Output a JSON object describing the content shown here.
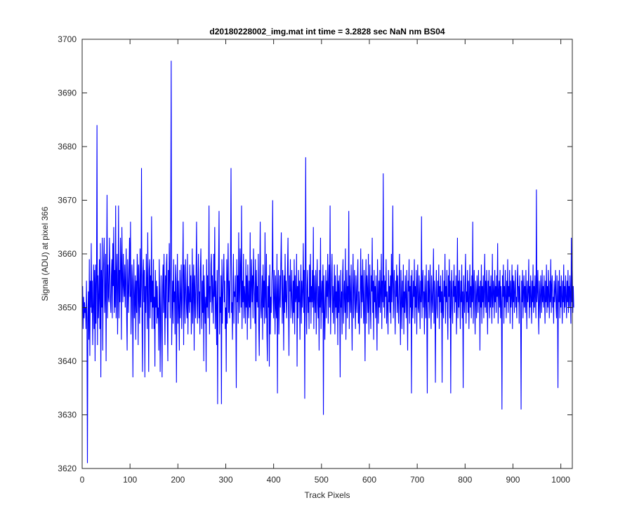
{
  "chart_data": {
    "type": "line",
    "title": "d20180228002_img.mat int time = 3.2828 sec  NaN nm BS04",
    "xlabel": "Track Pixels",
    "ylabel": "Signal (ADU) at pixel 366",
    "xlim": [
      0,
      1024
    ],
    "ylim": [
      3620,
      3700
    ],
    "xticks": [
      0,
      100,
      200,
      300,
      400,
      500,
      600,
      700,
      800,
      900,
      1000
    ],
    "yticks": [
      3620,
      3630,
      3640,
      3650,
      3660,
      3670,
      3680,
      3690,
      3700
    ],
    "grid": false,
    "legend": "none",
    "series": [
      {
        "color": "#0000ff",
        "x_start": 1,
        "x_step": 1,
        "values": [
          3654,
          3646,
          3652,
          3648,
          3651,
          3649,
          3650,
          3646,
          3655,
          3647,
          3621,
          3648,
          3653,
          3644,
          3659,
          3641,
          3655,
          3650,
          3662,
          3649,
          3655,
          3643,
          3650,
          3658,
          3646,
          3657,
          3640,
          3658,
          3647,
          3655,
          3684,
          3643,
          3656,
          3648,
          3652,
          3659,
          3646,
          3662,
          3637,
          3657,
          3650,
          3663,
          3642,
          3655,
          3659,
          3663,
          3649,
          3652,
          3660,
          3640,
          3656,
          3671,
          3648,
          3658,
          3652,
          3651,
          3663,
          3657,
          3651,
          3649,
          3656,
          3659,
          3648,
          3662,
          3654,
          3665,
          3649,
          3657,
          3650,
          3669,
          3648,
          3656,
          3660,
          3645,
          3653,
          3669,
          3648,
          3657,
          3651,
          3663,
          3659,
          3644,
          3665,
          3656,
          3651,
          3660,
          3654,
          3652,
          3658,
          3650,
          3655,
          3661,
          3648,
          3642,
          3659,
          3654,
          3649,
          3657,
          3663,
          3652,
          3666,
          3645,
          3650,
          3658,
          3655,
          3637,
          3653,
          3659,
          3648,
          3651,
          3656,
          3644,
          3655,
          3649,
          3660,
          3657,
          3643,
          3658,
          3652,
          3647,
          3661,
          3650,
          3654,
          3676,
          3648,
          3638,
          3656,
          3659,
          3651,
          3657,
          3637,
          3654,
          3649,
          3660,
          3655,
          3646,
          3664,
          3652,
          3638,
          3657,
          3659,
          3648,
          3656,
          3651,
          3667,
          3646,
          3655,
          3650,
          3659,
          3646,
          3652,
          3639,
          3657,
          3650,
          3655,
          3647,
          3654,
          3648,
          3650,
          3642,
          3659,
          3652,
          3638,
          3650,
          3656,
          3645,
          3637,
          3654,
          3658,
          3649,
          3660,
          3651,
          3643,
          3656,
          3648,
          3658,
          3660,
          3647,
          3640,
          3657,
          3651,
          3662,
          3655,
          3648,
          3667,
          3696,
          3643,
          3650,
          3655,
          3647,
          3659,
          3651,
          3653,
          3645,
          3658,
          3655,
          3636,
          3652,
          3660,
          3647,
          3655,
          3650,
          3642,
          3657,
          3648,
          3652,
          3658,
          3646,
          3651,
          3657,
          3666,
          3643,
          3658,
          3652,
          3647,
          3659,
          3654,
          3650,
          3648,
          3660,
          3645,
          3654,
          3652,
          3649,
          3658,
          3651,
          3656,
          3645,
          3650,
          3661,
          3647,
          3654,
          3658,
          3642,
          3656,
          3652,
          3648,
          3657,
          3666,
          3651,
          3647,
          3655,
          3660,
          3648,
          3653,
          3645,
          3657,
          3661,
          3652,
          3646,
          3655,
          3649,
          3658,
          3640,
          3656,
          3651,
          3647,
          3652,
          3638,
          3659,
          3650,
          3656,
          3648,
          3653,
          3669,
          3645,
          3654,
          3651,
          3658,
          3660,
          3649,
          3656,
          3652,
          3647,
          3660,
          3652,
          3665,
          3646,
          3655,
          3650,
          3643,
          3657,
          3632,
          3654,
          3658,
          3668,
          3645,
          3652,
          3649,
          3656,
          3632,
          3659,
          3647,
          3652,
          3656,
          3660,
          3651,
          3655,
          3646,
          3650,
          3638,
          3659,
          3647,
          3656,
          3662,
          3649,
          3655,
          3648,
          3654,
          3660,
          3676,
          3649,
          3651,
          3644,
          3655,
          3660,
          3647,
          3653,
          3652,
          3656,
          3649,
          3635,
          3659,
          3651,
          3656,
          3647,
          3664,
          3653,
          3649,
          3661,
          3657,
          3650,
          3669,
          3646,
          3655,
          3651,
          3660,
          3648,
          3654,
          3652,
          3647,
          3659,
          3650,
          3656,
          3644,
          3658,
          3652,
          3648,
          3655,
          3650,
          3664,
          3646,
          3654,
          3659,
          3651,
          3656,
          3648,
          3661,
          3655,
          3652,
          3647,
          3659,
          3640,
          3657,
          3651,
          3654,
          3650,
          3660,
          3646,
          3641,
          3655,
          3666,
          3650,
          3648,
          3652,
          3656,
          3644,
          3658,
          3650,
          3655,
          3647,
          3664,
          3652,
          3648,
          3660,
          3645,
          3640,
          3654,
          3650,
          3656,
          3639,
          3658,
          3645,
          3652,
          3649,
          3655,
          3657,
          3670,
          3651,
          3648,
          3657,
          3652,
          3645,
          3656,
          3650,
          3648,
          3660,
          3634,
          3653,
          3657,
          3645,
          3651,
          3656,
          3650,
          3658,
          3664,
          3654,
          3647,
          3657,
          3652,
          3642,
          3656,
          3649,
          3660,
          3651,
          3655,
          3648,
          3652,
          3657,
          3663,
          3650,
          3641,
          3656,
          3653,
          3659,
          3648,
          3652,
          3657,
          3650,
          3647,
          3655,
          3649,
          3659,
          3645,
          3656,
          3651,
          3652,
          3660,
          3639,
          3654,
          3648,
          3657,
          3651,
          3655,
          3644,
          3652,
          3658,
          3647,
          3655,
          3650,
          3653,
          3662,
          3649,
          3657,
          3633,
          3655,
          3678,
          3650,
          3645,
          3654,
          3657,
          3649,
          3652,
          3646,
          3658,
          3651,
          3660,
          3647,
          3654,
          3651,
          3657,
          3650,
          3665,
          3646,
          3656,
          3652,
          3649,
          3657,
          3645,
          3653,
          3659,
          3651,
          3648,
          3654,
          3642,
          3657,
          3650,
          3663,
          3646,
          3652,
          3655,
          3649,
          3658,
          3630,
          3656,
          3650,
          3644,
          3651,
          3657,
          3648,
          3655,
          3652,
          3660,
          3647,
          3654,
          3658,
          3650,
          3669,
          3645,
          3651,
          3656,
          3660,
          3649,
          3654,
          3647,
          3652,
          3658,
          3645,
          3656,
          3650,
          3653,
          3648,
          3658,
          3643,
          3655,
          3649,
          3656,
          3651,
          3637,
          3657,
          3650,
          3653,
          3645,
          3656,
          3659,
          3647,
          3652,
          3655,
          3649,
          3661,
          3644,
          3652,
          3657,
          3648,
          3654,
          3651,
          3668,
          3646,
          3656,
          3652,
          3649,
          3658,
          3650,
          3642,
          3655,
          3660,
          3648,
          3653,
          3657,
          3650,
          3646,
          3656,
          3652,
          3649,
          3655,
          3659,
          3647,
          3653,
          3645,
          3650,
          3654,
          3661,
          3648,
          3656,
          3651,
          3659,
          3652,
          3647,
          3657,
          3650,
          3640,
          3654,
          3659,
          3647,
          3656,
          3653,
          3649,
          3660,
          3645,
          3652,
          3658,
          3650,
          3646,
          3656,
          3653,
          3663,
          3649,
          3655,
          3644,
          3657,
          3651,
          3654,
          3648,
          3656,
          3650,
          3642,
          3659,
          3653,
          3647,
          3655,
          3650,
          3657,
          3649,
          3653,
          3660,
          3646,
          3655,
          3651,
          3675,
          3650,
          3656,
          3648,
          3655,
          3652,
          3659,
          3647,
          3653,
          3650,
          3645,
          3657,
          3651,
          3654,
          3649,
          3656,
          3647,
          3660,
          3651,
          3655,
          3669,
          3648,
          3653,
          3657,
          3650,
          3645,
          3655,
          3652,
          3658,
          3649,
          3656,
          3651,
          3647,
          3654,
          3660,
          3650,
          3643,
          3657,
          3652,
          3646,
          3655,
          3650,
          3658,
          3645,
          3653,
          3649,
          3656,
          3652,
          3648,
          3657,
          3651,
          3642,
          3655,
          3653,
          3659,
          3647,
          3654,
          3650,
          3656,
          3634,
          3657,
          3651,
          3648,
          3655,
          3652,
          3659,
          3647,
          3654,
          3650,
          3657,
          3645,
          3653,
          3658,
          3650,
          3649,
          3656,
          3652,
          3646,
          3655,
          3651,
          3667,
          3648,
          3654,
          3657,
          3650,
          3653,
          3645,
          3656,
          3652,
          3648,
          3658,
          3649,
          3634,
          3655,
          3651,
          3657,
          3648,
          3653,
          3658,
          3650,
          3646,
          3656,
          3652,
          3649,
          3654,
          3661,
          3647,
          3655,
          3651,
          3636,
          3653,
          3657,
          3650,
          3648,
          3655,
          3652,
          3658,
          3646,
          3654,
          3651,
          3656,
          3649,
          3653,
          3636,
          3657,
          3650,
          3648,
          3655,
          3652,
          3660,
          3647,
          3654,
          3651,
          3657,
          3649,
          3644,
          3656,
          3652,
          3659,
          3648,
          3655,
          3634,
          3653,
          3657,
          3650,
          3647,
          3655,
          3652,
          3658,
          3649,
          3654,
          3651,
          3656,
          3645,
          3652,
          3663,
          3648,
          3655,
          3650,
          3657,
          3652,
          3646,
          3655,
          3651,
          3658,
          3648,
          3653,
          3635,
          3656,
          3652,
          3649,
          3655,
          3660,
          3647,
          3653,
          3651,
          3657,
          3649,
          3655,
          3646,
          3652,
          3658,
          3650,
          3654,
          3648,
          3656,
          3651,
          3666,
          3647,
          3653,
          3657,
          3650,
          3645,
          3655,
          3652,
          3648,
          3656,
          3653,
          3649,
          3657,
          3651,
          3654,
          3642,
          3655,
          3650,
          3658,
          3647,
          3654,
          3651,
          3656,
          3648,
          3653,
          3660,
          3650,
          3655,
          3649,
          3657,
          3652,
          3645,
          3655,
          3651,
          3657,
          3648,
          3654,
          3650,
          3656,
          3652,
          3647,
          3660,
          3650,
          3655,
          3653,
          3648,
          3657,
          3651,
          3654,
          3649,
          3656,
          3652,
          3662,
          3647,
          3653,
          3655,
          3650,
          3657,
          3648,
          3654,
          3651,
          3631,
          3656,
          3652,
          3658,
          3647,
          3654,
          3650,
          3657,
          3652,
          3648,
          3655,
          3651,
          3659,
          3649,
          3654,
          3652,
          3657,
          3647,
          3655,
          3650,
          3652,
          3658,
          3646,
          3656,
          3651,
          3655,
          3649,
          3653,
          3657,
          3650,
          3652,
          3648,
          3655,
          3658,
          3651,
          3654,
          3647,
          3656,
          3652,
          3650,
          3631,
          3655,
          3651,
          3657,
          3648,
          3653,
          3656,
          3650,
          3654,
          3649,
          3657,
          3652,
          3646,
          3655,
          3651,
          3653,
          3659,
          3648,
          3654,
          3650,
          3656,
          3652,
          3647,
          3655,
          3651,
          3658,
          3649,
          3654,
          3650,
          3656,
          3652,
          3648,
          3672,
          3651,
          3653,
          3657,
          3650,
          3645,
          3655,
          3652,
          3648,
          3656,
          3653,
          3649,
          3657,
          3651,
          3654,
          3650,
          3656,
          3652,
          3647,
          3655,
          3651,
          3658,
          3649,
          3654,
          3650,
          3657,
          3652,
          3648,
          3655,
          3651,
          3659,
          3649,
          3654,
          3656,
          3650,
          3652,
          3647,
          3655,
          3651,
          3653,
          3657,
          3650,
          3648,
          3656,
          3652,
          3635,
          3655,
          3651,
          3657,
          3648,
          3654,
          3650,
          3656,
          3652,
          3647,
          3655,
          3651,
          3658,
          3649,
          3654,
          3650,
          3656,
          3652,
          3648,
          3655,
          3651,
          3657,
          3649,
          3654,
          3650,
          3656,
          3652,
          3647,
          3663,
          3651,
          3657,
          3649,
          3654,
          3650
        ]
      }
    ]
  }
}
